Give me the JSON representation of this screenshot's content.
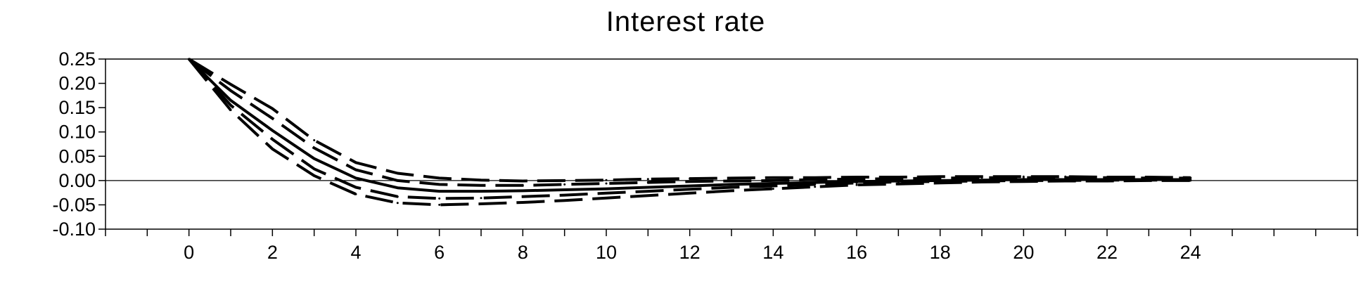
{
  "chart_data": {
    "type": "line",
    "title": "Interest rate",
    "xlabel": "",
    "ylabel": "",
    "xlim": [
      -2,
      28
    ],
    "ylim": [
      -0.1,
      0.25
    ],
    "x_ticks": [
      0,
      2,
      4,
      6,
      8,
      10,
      12,
      14,
      16,
      18,
      20,
      22,
      24
    ],
    "y_ticks": [
      0.25,
      0.2,
      0.15,
      0.1,
      0.05,
      0.0,
      -0.05,
      -0.1
    ],
    "y_tick_labels": [
      "0.25",
      "0.20",
      "0.15",
      "0.10",
      "0.05",
      "0.00",
      "-0.05",
      "-0.10"
    ],
    "zero_line": true,
    "grid": false,
    "legend": "none",
    "x": [
      0,
      1,
      2,
      3,
      4,
      5,
      6,
      7,
      8,
      9,
      10,
      11,
      12,
      13,
      14,
      15,
      16,
      17,
      18,
      19,
      20,
      21,
      22,
      23,
      24
    ],
    "series": [
      {
        "style": "solid",
        "values": [
          0.25,
          0.165,
          0.103,
          0.045,
          0.005,
          -0.015,
          -0.022,
          -0.022,
          -0.021,
          -0.019,
          -0.017,
          -0.014,
          -0.011,
          -0.008,
          -0.006,
          -0.004,
          -0.002,
          -0.001,
          0.0,
          0.001,
          0.002,
          0.002,
          0.002,
          0.002,
          0.002
        ]
      },
      {
        "style": "dashed",
        "values": [
          0.25,
          0.198,
          0.148,
          0.083,
          0.037,
          0.015,
          0.005,
          0.001,
          -0.001,
          0.0,
          0.001,
          0.003,
          0.004,
          0.005,
          0.006,
          0.006,
          0.007,
          0.007,
          0.008,
          0.008,
          0.008,
          0.008,
          0.007,
          0.007,
          0.006
        ]
      },
      {
        "style": "dashed",
        "values": [
          0.25,
          0.185,
          0.128,
          0.067,
          0.022,
          0.0,
          -0.008,
          -0.01,
          -0.01,
          -0.008,
          -0.006,
          -0.004,
          -0.002,
          -0.001,
          0.0,
          0.002,
          0.003,
          0.004,
          0.005,
          0.006,
          0.006,
          0.006,
          0.006,
          0.005,
          0.005
        ]
      },
      {
        "style": "dashed",
        "values": [
          0.25,
          0.155,
          0.085,
          0.024,
          -0.014,
          -0.033,
          -0.037,
          -0.036,
          -0.033,
          -0.03,
          -0.026,
          -0.022,
          -0.018,
          -0.014,
          -0.011,
          -0.008,
          -0.005,
          -0.003,
          -0.002,
          -0.001,
          0.0,
          0.0,
          0.001,
          0.001,
          0.001
        ]
      },
      {
        "style": "dashed",
        "values": [
          0.25,
          0.145,
          0.065,
          0.01,
          -0.028,
          -0.046,
          -0.05,
          -0.048,
          -0.045,
          -0.041,
          -0.036,
          -0.031,
          -0.026,
          -0.021,
          -0.017,
          -0.013,
          -0.009,
          -0.007,
          -0.005,
          -0.003,
          -0.002,
          -0.001,
          -0.001,
          0.0,
          0.0
        ]
      }
    ]
  }
}
